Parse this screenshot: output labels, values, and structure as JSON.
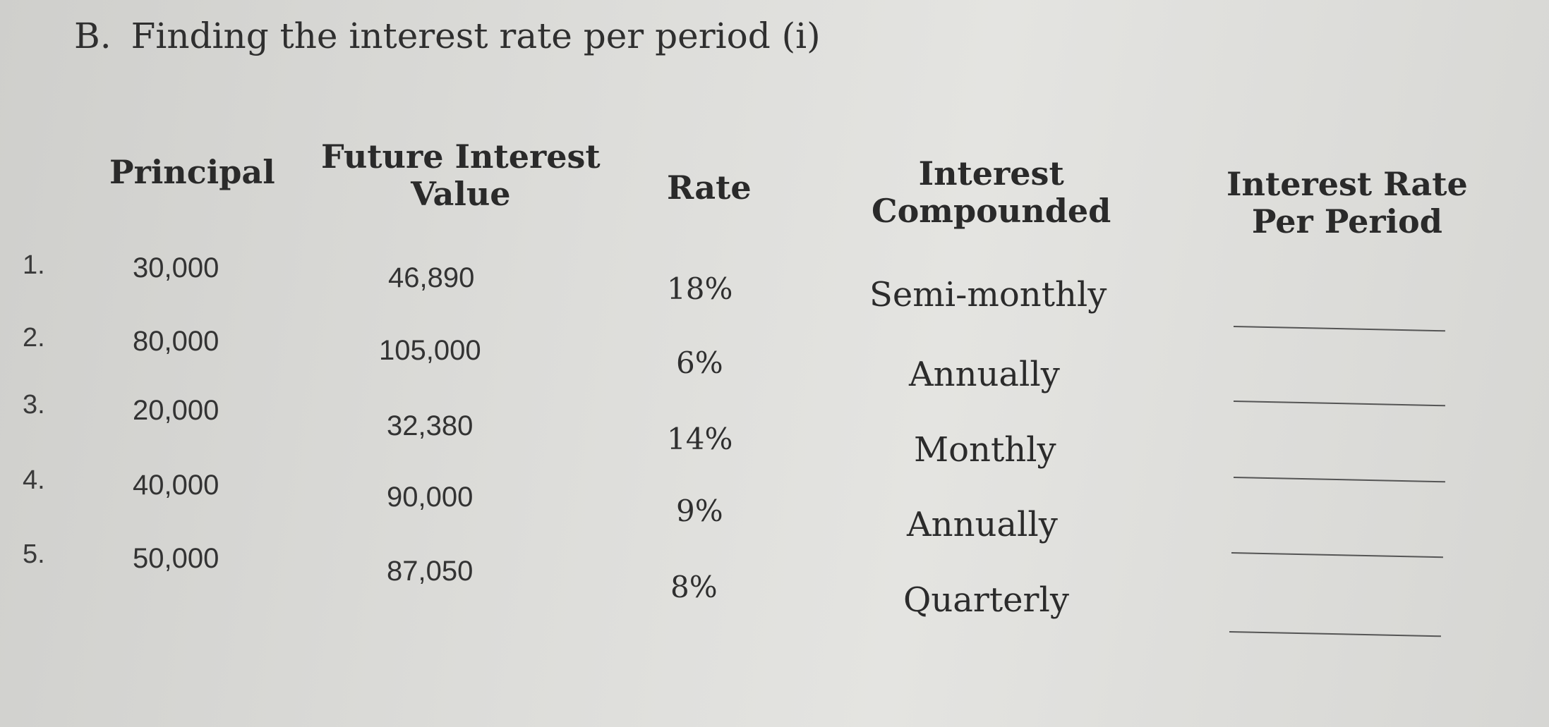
{
  "section": {
    "letter": "B.",
    "title": "Finding the interest rate per period (i)"
  },
  "headers": {
    "principal": "Principal",
    "future_value_line1": "Future Interest",
    "future_value_line2": "Value",
    "rate": "Rate",
    "compounded_line1": "Interest",
    "compounded_line2": "Compounded",
    "per_period_line1": "Interest Rate",
    "per_period_line2": "Per Period"
  },
  "rows": [
    {
      "num": "1.",
      "principal": "30,000",
      "future_value": "46,890",
      "rate": "18%",
      "compounded": "Semi-monthly",
      "answer": ""
    },
    {
      "num": "2.",
      "principal": "80,000",
      "future_value": "105,000",
      "rate": "6%",
      "compounded": "Annually",
      "answer": ""
    },
    {
      "num": "3.",
      "principal": "20,000",
      "future_value": "32,380",
      "rate": "14%",
      "compounded": "Monthly",
      "answer": ""
    },
    {
      "num": "4.",
      "principal": "40,000",
      "future_value": "90,000",
      "rate": "9%",
      "compounded": "Annually",
      "answer": ""
    },
    {
      "num": "5.",
      "principal": "50,000",
      "future_value": "87,050",
      "rate": "8%",
      "compounded": "Quarterly",
      "answer": ""
    }
  ]
}
